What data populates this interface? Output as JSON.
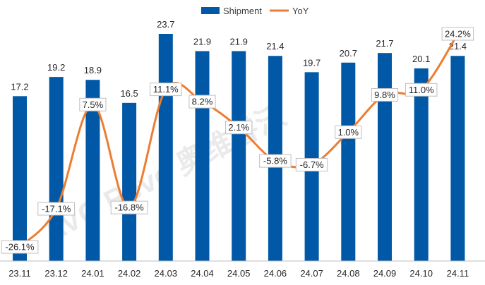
{
  "chart_data": {
    "type": "bar",
    "categories": [
      "23.11",
      "23.12",
      "24.01",
      "24.02",
      "24.03",
      "24.04",
      "24.05",
      "24.06",
      "24.07",
      "24.08",
      "24.09",
      "24.10",
      "24.11"
    ],
    "series": [
      {
        "name": "Shipment",
        "type": "bar",
        "values": [
          17.2,
          19.2,
          18.9,
          16.5,
          23.7,
          21.9,
          21.9,
          21.4,
          19.7,
          20.7,
          21.7,
          20.1,
          21.4
        ],
        "labels": [
          "17.2",
          "19.2",
          "18.9",
          "16.5",
          "23.7",
          "21.9",
          "21.9",
          "21.4",
          "19.7",
          "20.7",
          "21.7",
          "20.1",
          "21.4"
        ],
        "color": "#0058a6"
      },
      {
        "name": "YoY",
        "type": "line",
        "values": [
          -26.1,
          -17.1,
          7.5,
          -16.8,
          11.1,
          8.2,
          2.1,
          -5.8,
          -6.7,
          1.0,
          9.8,
          11.0,
          24.2
        ],
        "labels": [
          "-26.1%",
          "-17.1%",
          "7.5%",
          "-16.8%",
          "11.1%",
          "8.2%",
          "2.1%",
          "-5.8%",
          "-6.7%",
          "1.0%",
          "9.8%",
          "11.0%",
          "24.2%"
        ],
        "color": "#ed7d31"
      }
    ],
    "legend_position": "top-center",
    "grid": false
  },
  "watermark": "AVC Revo 奥维睿沃"
}
